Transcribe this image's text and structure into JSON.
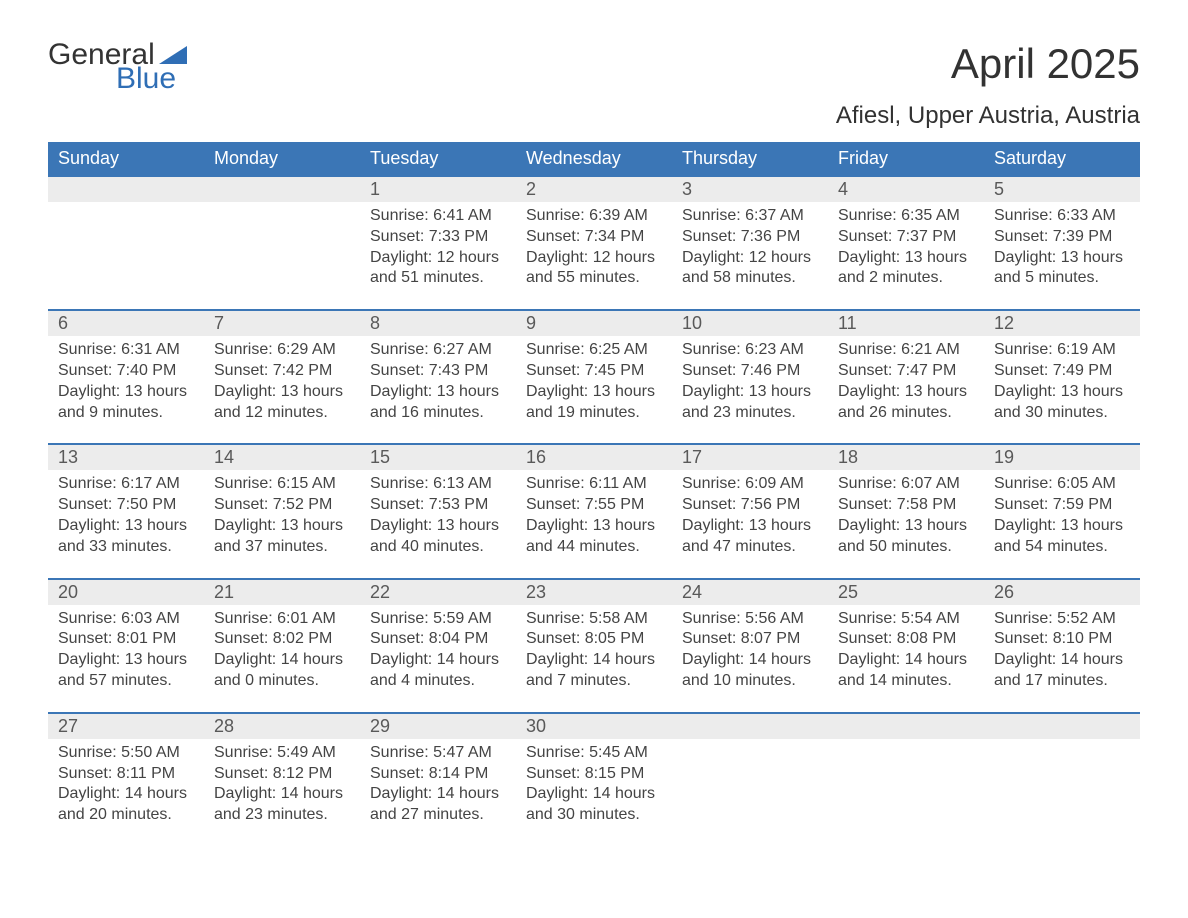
{
  "logo": {
    "general": "General",
    "blue": "Blue"
  },
  "title": "April 2025",
  "subtitle": "Afiesl, Upper Austria, Austria",
  "weekdays": [
    "Sunday",
    "Monday",
    "Tuesday",
    "Wednesday",
    "Thursday",
    "Friday",
    "Saturday"
  ],
  "colors": {
    "header_bg": "#3b76b6",
    "header_text": "#ffffff",
    "daynum_bg": "#ececec",
    "daynum_text": "#595959",
    "body_text": "#444444",
    "title_text": "#323232",
    "logo_dark": "#333333",
    "logo_blue": "#2f6eb5"
  },
  "weeks": [
    {
      "nums": [
        "",
        "",
        "1",
        "2",
        "3",
        "4",
        "5"
      ],
      "days": [
        null,
        null,
        {
          "sunrise": "Sunrise: 6:41 AM",
          "sunset": "Sunset: 7:33 PM",
          "d1": "Daylight: 12 hours",
          "d2": "and 51 minutes."
        },
        {
          "sunrise": "Sunrise: 6:39 AM",
          "sunset": "Sunset: 7:34 PM",
          "d1": "Daylight: 12 hours",
          "d2": "and 55 minutes."
        },
        {
          "sunrise": "Sunrise: 6:37 AM",
          "sunset": "Sunset: 7:36 PM",
          "d1": "Daylight: 12 hours",
          "d2": "and 58 minutes."
        },
        {
          "sunrise": "Sunrise: 6:35 AM",
          "sunset": "Sunset: 7:37 PM",
          "d1": "Daylight: 13 hours",
          "d2": "and 2 minutes."
        },
        {
          "sunrise": "Sunrise: 6:33 AM",
          "sunset": "Sunset: 7:39 PM",
          "d1": "Daylight: 13 hours",
          "d2": "and 5 minutes."
        }
      ]
    },
    {
      "nums": [
        "6",
        "7",
        "8",
        "9",
        "10",
        "11",
        "12"
      ],
      "days": [
        {
          "sunrise": "Sunrise: 6:31 AM",
          "sunset": "Sunset: 7:40 PM",
          "d1": "Daylight: 13 hours",
          "d2": "and 9 minutes."
        },
        {
          "sunrise": "Sunrise: 6:29 AM",
          "sunset": "Sunset: 7:42 PM",
          "d1": "Daylight: 13 hours",
          "d2": "and 12 minutes."
        },
        {
          "sunrise": "Sunrise: 6:27 AM",
          "sunset": "Sunset: 7:43 PM",
          "d1": "Daylight: 13 hours",
          "d2": "and 16 minutes."
        },
        {
          "sunrise": "Sunrise: 6:25 AM",
          "sunset": "Sunset: 7:45 PM",
          "d1": "Daylight: 13 hours",
          "d2": "and 19 minutes."
        },
        {
          "sunrise": "Sunrise: 6:23 AM",
          "sunset": "Sunset: 7:46 PM",
          "d1": "Daylight: 13 hours",
          "d2": "and 23 minutes."
        },
        {
          "sunrise": "Sunrise: 6:21 AM",
          "sunset": "Sunset: 7:47 PM",
          "d1": "Daylight: 13 hours",
          "d2": "and 26 minutes."
        },
        {
          "sunrise": "Sunrise: 6:19 AM",
          "sunset": "Sunset: 7:49 PM",
          "d1": "Daylight: 13 hours",
          "d2": "and 30 minutes."
        }
      ]
    },
    {
      "nums": [
        "13",
        "14",
        "15",
        "16",
        "17",
        "18",
        "19"
      ],
      "days": [
        {
          "sunrise": "Sunrise: 6:17 AM",
          "sunset": "Sunset: 7:50 PM",
          "d1": "Daylight: 13 hours",
          "d2": "and 33 minutes."
        },
        {
          "sunrise": "Sunrise: 6:15 AM",
          "sunset": "Sunset: 7:52 PM",
          "d1": "Daylight: 13 hours",
          "d2": "and 37 minutes."
        },
        {
          "sunrise": "Sunrise: 6:13 AM",
          "sunset": "Sunset: 7:53 PM",
          "d1": "Daylight: 13 hours",
          "d2": "and 40 minutes."
        },
        {
          "sunrise": "Sunrise: 6:11 AM",
          "sunset": "Sunset: 7:55 PM",
          "d1": "Daylight: 13 hours",
          "d2": "and 44 minutes."
        },
        {
          "sunrise": "Sunrise: 6:09 AM",
          "sunset": "Sunset: 7:56 PM",
          "d1": "Daylight: 13 hours",
          "d2": "and 47 minutes."
        },
        {
          "sunrise": "Sunrise: 6:07 AM",
          "sunset": "Sunset: 7:58 PM",
          "d1": "Daylight: 13 hours",
          "d2": "and 50 minutes."
        },
        {
          "sunrise": "Sunrise: 6:05 AM",
          "sunset": "Sunset: 7:59 PM",
          "d1": "Daylight: 13 hours",
          "d2": "and 54 minutes."
        }
      ]
    },
    {
      "nums": [
        "20",
        "21",
        "22",
        "23",
        "24",
        "25",
        "26"
      ],
      "days": [
        {
          "sunrise": "Sunrise: 6:03 AM",
          "sunset": "Sunset: 8:01 PM",
          "d1": "Daylight: 13 hours",
          "d2": "and 57 minutes."
        },
        {
          "sunrise": "Sunrise: 6:01 AM",
          "sunset": "Sunset: 8:02 PM",
          "d1": "Daylight: 14 hours",
          "d2": "and 0 minutes."
        },
        {
          "sunrise": "Sunrise: 5:59 AM",
          "sunset": "Sunset: 8:04 PM",
          "d1": "Daylight: 14 hours",
          "d2": "and 4 minutes."
        },
        {
          "sunrise": "Sunrise: 5:58 AM",
          "sunset": "Sunset: 8:05 PM",
          "d1": "Daylight: 14 hours",
          "d2": "and 7 minutes."
        },
        {
          "sunrise": "Sunrise: 5:56 AM",
          "sunset": "Sunset: 8:07 PM",
          "d1": "Daylight: 14 hours",
          "d2": "and 10 minutes."
        },
        {
          "sunrise": "Sunrise: 5:54 AM",
          "sunset": "Sunset: 8:08 PM",
          "d1": "Daylight: 14 hours",
          "d2": "and 14 minutes."
        },
        {
          "sunrise": "Sunrise: 5:52 AM",
          "sunset": "Sunset: 8:10 PM",
          "d1": "Daylight: 14 hours",
          "d2": "and 17 minutes."
        }
      ]
    },
    {
      "nums": [
        "27",
        "28",
        "29",
        "30",
        "",
        "",
        ""
      ],
      "days": [
        {
          "sunrise": "Sunrise: 5:50 AM",
          "sunset": "Sunset: 8:11 PM",
          "d1": "Daylight: 14 hours",
          "d2": "and 20 minutes."
        },
        {
          "sunrise": "Sunrise: 5:49 AM",
          "sunset": "Sunset: 8:12 PM",
          "d1": "Daylight: 14 hours",
          "d2": "and 23 minutes."
        },
        {
          "sunrise": "Sunrise: 5:47 AM",
          "sunset": "Sunset: 8:14 PM",
          "d1": "Daylight: 14 hours",
          "d2": "and 27 minutes."
        },
        {
          "sunrise": "Sunrise: 5:45 AM",
          "sunset": "Sunset: 8:15 PM",
          "d1": "Daylight: 14 hours",
          "d2": "and 30 minutes."
        },
        null,
        null,
        null
      ]
    }
  ]
}
